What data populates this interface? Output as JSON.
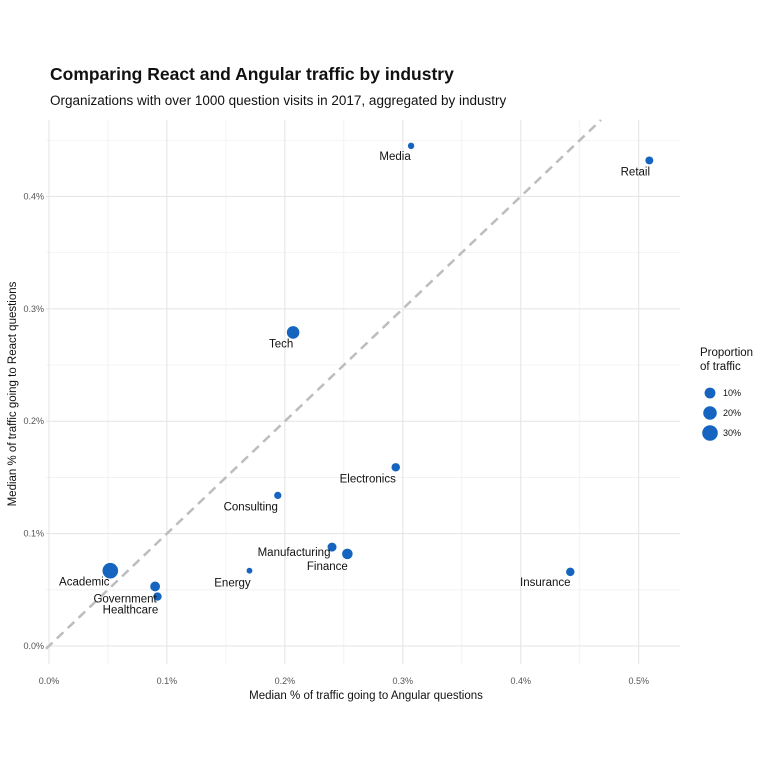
{
  "chart_data": {
    "type": "scatter",
    "title": "Comparing React and Angular traffic by industry",
    "subtitle": "Organizations with over 1000 question visits in 2017, aggregated by industry",
    "xlabel": "Median % of traffic going to Angular questions",
    "ylabel": "Median % of traffic going to React questions",
    "xlim": [
      -0.0025,
      0.535
    ],
    "ylim": [
      -0.016,
      0.468
    ],
    "x_ticks": [
      {
        "value": 0.0,
        "label": "0.0%"
      },
      {
        "value": 0.1,
        "label": "0.1%"
      },
      {
        "value": 0.2,
        "label": "0.2%"
      },
      {
        "value": 0.3,
        "label": "0.3%"
      },
      {
        "value": 0.4,
        "label": "0.4%"
      },
      {
        "value": 0.5,
        "label": "0.5%"
      }
    ],
    "y_ticks": [
      {
        "value": 0.0,
        "label": "0.0%"
      },
      {
        "value": 0.1,
        "label": "0.1%"
      },
      {
        "value": 0.2,
        "label": "0.2%"
      },
      {
        "value": 0.3,
        "label": "0.3%"
      },
      {
        "value": 0.4,
        "label": "0.4%"
      }
    ],
    "grid": true,
    "reference_line": "y = x (dashed, grey)",
    "point_color": "#1565c0",
    "reference_line_color": "#bdbdbd",
    "points": [
      {
        "label": "Media",
        "x": 0.307,
        "y": 0.445,
        "size": 1
      },
      {
        "label": "Retail",
        "x": 0.509,
        "y": 0.432,
        "size": 3
      },
      {
        "label": "Tech",
        "x": 0.207,
        "y": 0.279,
        "size": 16
      },
      {
        "label": "Electronics",
        "x": 0.294,
        "y": 0.159,
        "size": 4
      },
      {
        "label": "Consulting",
        "x": 0.194,
        "y": 0.134,
        "size": 2
      },
      {
        "label": "Manufacturing",
        "x": 0.24,
        "y": 0.088,
        "size": 5
      },
      {
        "label": "Finance",
        "x": 0.253,
        "y": 0.082,
        "size": 9
      },
      {
        "label": "Academic",
        "x": 0.052,
        "y": 0.067,
        "size": 30
      },
      {
        "label": "Energy",
        "x": 0.17,
        "y": 0.067,
        "size": 0.5
      },
      {
        "label": "Insurance",
        "x": 0.442,
        "y": 0.066,
        "size": 4
      },
      {
        "label": "Government",
        "x": 0.09,
        "y": 0.053,
        "size": 7
      },
      {
        "label": "Healthcare",
        "x": 0.092,
        "y": 0.044,
        "size": 4
      }
    ],
    "legend": {
      "title_lines": [
        "Proportion",
        "of traffic"
      ],
      "placement": "right",
      "entries": [
        {
          "label": "10%",
          "size": 10
        },
        {
          "label": "20%",
          "size": 20
        },
        {
          "label": "30%",
          "size": 30
        }
      ]
    }
  }
}
